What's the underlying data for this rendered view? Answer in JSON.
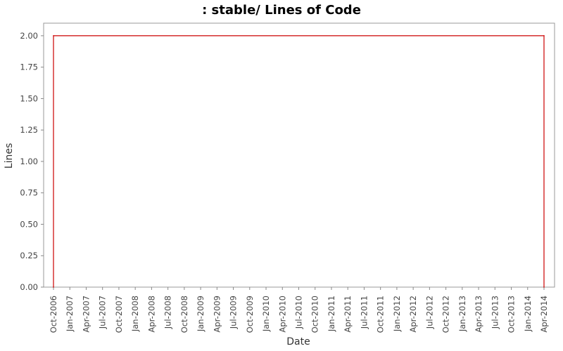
{
  "chart_data": {
    "type": "line",
    "title": ": stable/ Lines of Code",
    "xlabel": "Date",
    "ylabel": "Lines",
    "x_tick_labels": [
      "Oct-2006",
      "Jan-2007",
      "Apr-2007",
      "Jul-2007",
      "Oct-2007",
      "Jan-2008",
      "Apr-2008",
      "Jul-2008",
      "Oct-2008",
      "Jan-2009",
      "Apr-2009",
      "Jul-2009",
      "Oct-2009",
      "Jan-2010",
      "Apr-2010",
      "Jul-2010",
      "Oct-2010",
      "Jan-2011",
      "Apr-2011",
      "Jul-2011",
      "Oct-2011",
      "Jan-2012",
      "Apr-2012",
      "Jul-2012",
      "Oct-2012",
      "Jan-2013",
      "Apr-2013",
      "Jul-2013",
      "Oct-2013",
      "Jan-2014",
      "Apr-2014"
    ],
    "y_ticks": [
      0.0,
      0.25,
      0.5,
      0.75,
      1.0,
      1.25,
      1.5,
      1.75,
      2.0
    ],
    "y_tick_labels": [
      "0.00",
      "0.25",
      "0.50",
      "0.75",
      "1.00",
      "1.25",
      "1.50",
      "1.75",
      "2.00"
    ],
    "ylim": [
      0,
      2.1
    ],
    "grid": false,
    "series": [
      {
        "color": "#cc0000",
        "points": [
          {
            "x": "Oct-2006",
            "y": 0
          },
          {
            "x": "Oct-2006",
            "y": 2
          },
          {
            "x": "Apr-2014",
            "y": 2
          },
          {
            "x": "Apr-2014",
            "y": 0
          }
        ]
      }
    ]
  }
}
